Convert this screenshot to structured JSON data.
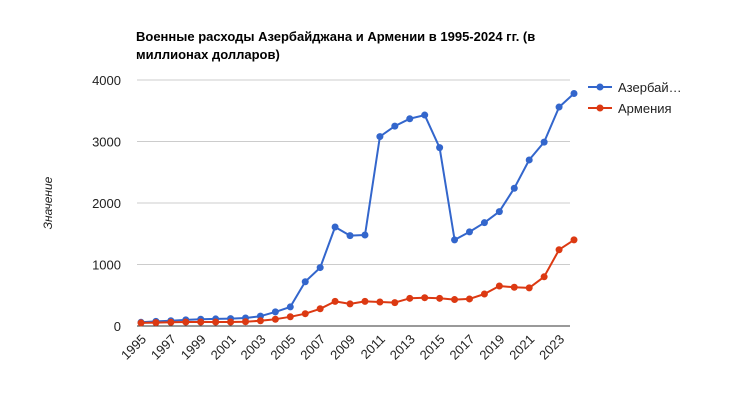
{
  "chart_data": {
    "type": "line",
    "title": "Военные расходы Азербайджана и Армении в 1995-2024 гг. (в миллионах долларов)",
    "title_lines": [
      "Военные расходы Азербайджана и Армении в 1995-2024 гг. (в",
      "миллионах долларов)"
    ],
    "xlabel": "",
    "ylabel": "Значение",
    "ylim": [
      0,
      4000
    ],
    "yticks": [
      0,
      1000,
      2000,
      3000,
      4000
    ],
    "xtick_labels": [
      "1995",
      "1997",
      "1999",
      "2001",
      "2003",
      "2005",
      "2007",
      "2009",
      "2011",
      "2013",
      "2015",
      "2017",
      "2019",
      "2021",
      "2023"
    ],
    "x": [
      1995,
      1996,
      1997,
      1998,
      1999,
      2000,
      2001,
      2002,
      2003,
      2004,
      2005,
      2006,
      2007,
      2008,
      2009,
      2010,
      2011,
      2012,
      2013,
      2014,
      2015,
      2016,
      2017,
      2018,
      2019,
      2020,
      2021,
      2022,
      2023,
      2024
    ],
    "grid": true,
    "legend_position": "right",
    "series": [
      {
        "name": "Азербайджан",
        "legend_label": "Азербай…",
        "color": "#3366cc",
        "values": [
          60,
          75,
          85,
          100,
          110,
          115,
          120,
          130,
          160,
          230,
          310,
          720,
          950,
          1610,
          1470,
          1480,
          3080,
          3250,
          3370,
          3430,
          2900,
          1400,
          1530,
          1680,
          1860,
          2240,
          2700,
          2990,
          3560,
          3780
        ]
      },
      {
        "name": "Армения",
        "legend_label": "Армения",
        "color": "#dc3912",
        "values": [
          50,
          55,
          60,
          65,
          65,
          65,
          65,
          70,
          85,
          110,
          150,
          200,
          280,
          400,
          360,
          400,
          390,
          380,
          450,
          460,
          450,
          430,
          440,
          520,
          650,
          630,
          620,
          800,
          1240,
          1400
        ]
      }
    ]
  }
}
